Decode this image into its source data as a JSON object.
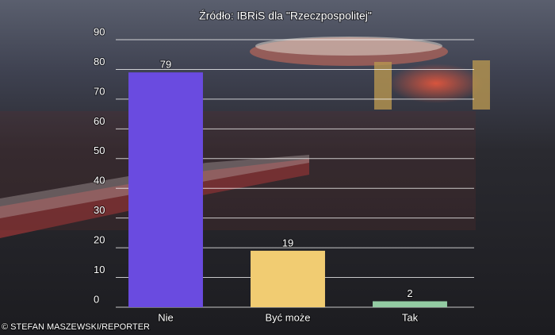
{
  "chart_data": {
    "type": "bar",
    "title": "Źródło: IBRiS dla \"Rzeczpospolitej\"",
    "credit": "© STEFAN MASZEWSKI/REPORTER",
    "categories": [
      "Nie",
      "Być może",
      "Tak"
    ],
    "values": [
      79,
      19,
      2
    ],
    "colors": [
      "#6a4be0",
      "#f1cc72",
      "#93cba3"
    ],
    "ylim": [
      0,
      90
    ],
    "yticks": [
      0,
      10,
      20,
      30,
      40,
      50,
      60,
      70,
      80,
      90
    ],
    "grid": true
  }
}
